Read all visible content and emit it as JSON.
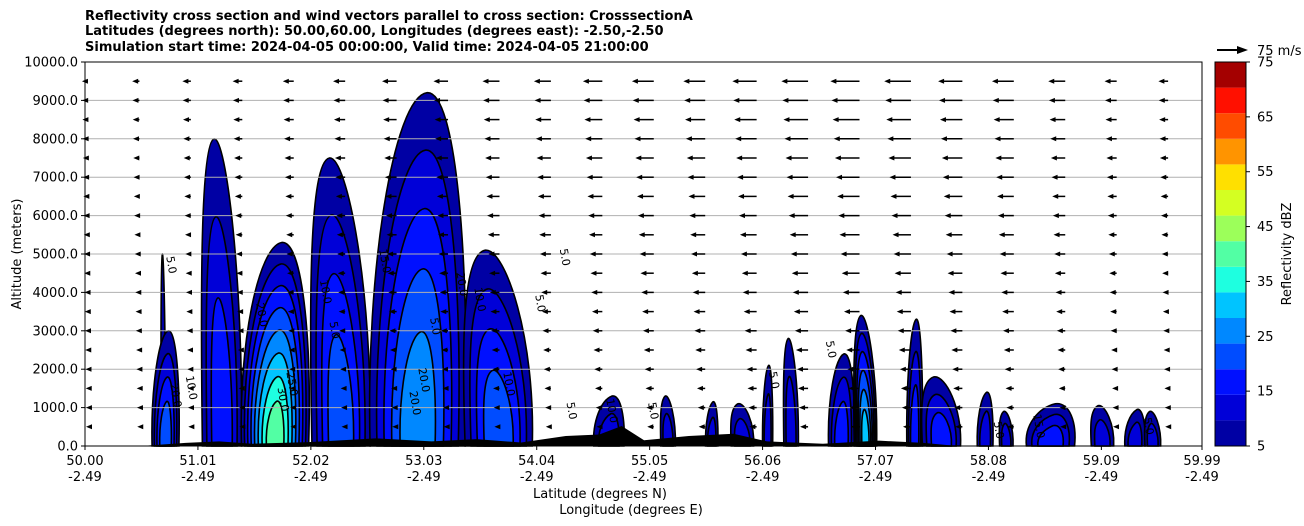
{
  "title_lines": [
    "Reflectivity cross section and wind vectors parallel to cross section: CrosssectionA",
    "Latitudes (degrees north): 50.00,60.00, Longitudes (degrees east): -2.50,-2.50",
    "Simulation start time: 2024-04-05 00:00:00, Valid time: 2024-04-05 21:00:00"
  ],
  "quiver_key_label": "75 m/s",
  "chart_data": {
    "type": "contourf",
    "ylabel": "Altitude (meters)",
    "xlabel_lines": [
      "Latitude (degrees N)",
      "Longitude (degrees E)"
    ],
    "xlim": [
      50.0,
      59.99
    ],
    "ylim": [
      0,
      10000
    ],
    "grid": "horizontal",
    "x_ticks": [
      {
        "value": 50.0,
        "lat": "50.00",
        "lon": "-2.49"
      },
      {
        "value": 51.01,
        "lat": "51.01",
        "lon": "-2.49"
      },
      {
        "value": 52.02,
        "lat": "52.02",
        "lon": "-2.49"
      },
      {
        "value": 53.03,
        "lat": "53.03",
        "lon": "-2.49"
      },
      {
        "value": 54.04,
        "lat": "54.04",
        "lon": "-2.49"
      },
      {
        "value": 55.05,
        "lat": "55.05",
        "lon": "-2.49"
      },
      {
        "value": 56.06,
        "lat": "56.06",
        "lon": "-2.49"
      },
      {
        "value": 57.07,
        "lat": "57.07",
        "lon": "-2.49"
      },
      {
        "value": 58.08,
        "lat": "58.08",
        "lon": "-2.49"
      },
      {
        "value": 59.09,
        "lat": "59.09",
        "lon": "-2.49"
      },
      {
        "value": 59.99,
        "lat": "59.99",
        "lon": "-2.49"
      }
    ],
    "y_ticks": [
      {
        "value": 0,
        "label": "0.0"
      },
      {
        "value": 1000,
        "label": "1000.0"
      },
      {
        "value": 2000,
        "label": "2000.0"
      },
      {
        "value": 3000,
        "label": "3000.0"
      },
      {
        "value": 4000,
        "label": "4000.0"
      },
      {
        "value": 5000,
        "label": "5000.0"
      },
      {
        "value": 6000,
        "label": "6000.0"
      },
      {
        "value": 7000,
        "label": "7000.0"
      },
      {
        "value": 8000,
        "label": "8000.0"
      },
      {
        "value": 9000,
        "label": "9000.0"
      },
      {
        "value": 10000,
        "label": "10000.0"
      }
    ],
    "colorbar": {
      "label": "Reflectivity dBZ",
      "levels": [
        5,
        10,
        15,
        20,
        25,
        30,
        35,
        40,
        45,
        50,
        55,
        60,
        65,
        70,
        75
      ],
      "colors": [
        "#0000a4",
        "#0000d8",
        "#0010ff",
        "#004cff",
        "#0088ff",
        "#00c4ff",
        "#1effe0",
        "#52ffa4",
        "#9cff5a",
        "#d4ff22",
        "#ffe000",
        "#ff9400",
        "#ff4c00",
        "#ff1000",
        "#a40000"
      ],
      "tick_labels": [
        "5",
        "15",
        "25",
        "35",
        "45",
        "55",
        "65",
        "75"
      ],
      "tick_values": [
        5,
        15,
        25,
        35,
        45,
        55,
        65,
        75
      ]
    },
    "cells": [
      {
        "x0": 50.68,
        "x1": 50.72,
        "top": 5000,
        "peak": 5
      },
      {
        "x0": 50.6,
        "x1": 50.84,
        "top": 3000,
        "peak": 20
      },
      {
        "x0": 51.05,
        "x1": 51.4,
        "top": 8000,
        "peak": 15
      },
      {
        "x0": 51.4,
        "x1": 52.0,
        "top": 5300,
        "peak": 40
      },
      {
        "x0": 52.03,
        "x1": 52.55,
        "top": 7500,
        "peak": 20
      },
      {
        "x0": 52.55,
        "x1": 53.4,
        "top": 9200,
        "peak": 25
      },
      {
        "x0": 53.4,
        "x1": 54.0,
        "top": 5100,
        "peak": 20
      },
      {
        "x0": 54.55,
        "x1": 54.82,
        "top": 1300,
        "peak": 10
      },
      {
        "x0": 55.15,
        "x1": 55.28,
        "top": 1300,
        "peak": 10
      },
      {
        "x0": 55.55,
        "x1": 55.66,
        "top": 1150,
        "peak": 10
      },
      {
        "x0": 55.78,
        "x1": 55.98,
        "top": 1100,
        "peak": 10
      },
      {
        "x0": 56.06,
        "x1": 56.15,
        "top": 2100,
        "peak": 10
      },
      {
        "x0": 56.25,
        "x1": 56.38,
        "top": 2800,
        "peak": 10
      },
      {
        "x0": 56.65,
        "x1": 56.88,
        "top": 2400,
        "peak": 15
      },
      {
        "x0": 56.88,
        "x1": 57.08,
        "top": 3400,
        "peak": 30
      },
      {
        "x0": 57.35,
        "x1": 57.49,
        "top": 3300,
        "peak": 15
      },
      {
        "x0": 57.49,
        "x1": 57.83,
        "top": 1800,
        "peak": 15
      },
      {
        "x0": 57.98,
        "x1": 58.12,
        "top": 1400,
        "peak": 10
      },
      {
        "x0": 58.18,
        "x1": 58.3,
        "top": 900,
        "peak": 10
      },
      {
        "x0": 58.42,
        "x1": 58.85,
        "top": 1100,
        "peak": 15
      },
      {
        "x0": 59.0,
        "x1": 59.2,
        "top": 1050,
        "peak": 10
      },
      {
        "x0": 59.3,
        "x1": 59.48,
        "top": 950,
        "peak": 10
      },
      {
        "x0": 59.48,
        "x1": 59.62,
        "top": 900,
        "peak": 10
      }
    ],
    "contour_labels": [
      {
        "text": "5.0",
        "x": 50.74,
        "y": 4700
      },
      {
        "text": "5.0",
        "x": 54.26,
        "y": 4900
      },
      {
        "text": "5.0",
        "x": 54.04,
        "y": 3700
      },
      {
        "text": "15.0",
        "x": 52.65,
        "y": 4800
      },
      {
        "text": "20.0",
        "x": 51.55,
        "y": 3400
      },
      {
        "text": "10.0",
        "x": 52.12,
        "y": 4000
      },
      {
        "text": "5.0",
        "x": 52.2,
        "y": 3000
      },
      {
        "text": "5.0",
        "x": 53.1,
        "y": 3100
      },
      {
        "text": "20.0",
        "x": 53.34,
        "y": 4200
      },
      {
        "text": "10.0",
        "x": 53.5,
        "y": 3800
      },
      {
        "text": "25.0",
        "x": 51.82,
        "y": 1600
      },
      {
        "text": "30.0",
        "x": 51.74,
        "y": 1200
      },
      {
        "text": "20.0",
        "x": 50.78,
        "y": 1300
      },
      {
        "text": "10.0",
        "x": 50.92,
        "y": 1500
      },
      {
        "text": "20.0",
        "x": 53.0,
        "y": 1700
      },
      {
        "text": "20.0",
        "x": 52.92,
        "y": 1100
      },
      {
        "text": "10.0",
        "x": 53.76,
        "y": 1600
      },
      {
        "text": "5.0",
        "x": 54.32,
        "y": 900
      },
      {
        "text": "10.0",
        "x": 54.68,
        "y": 900
      },
      {
        "text": "5.0",
        "x": 55.05,
        "y": 900
      },
      {
        "text": "5.0",
        "x": 56.13,
        "y": 1700
      },
      {
        "text": "5.0",
        "x": 56.64,
        "y": 2500
      },
      {
        "text": "5.0",
        "x": 58.14,
        "y": 400
      },
      {
        "text": "15.0",
        "x": 58.5,
        "y": 500
      },
      {
        "text": "5.0",
        "x": 59.48,
        "y": 500
      }
    ],
    "wind": {
      "columns_x": [
        50.0,
        50.46,
        50.92,
        51.38,
        51.84,
        52.3,
        52.76,
        53.22,
        53.68,
        54.14,
        54.6,
        55.06,
        55.52,
        55.98,
        56.44,
        56.9,
        57.36,
        57.82,
        58.28,
        58.74,
        59.2,
        59.66
      ],
      "levels_m": [
        500,
        1000,
        1500,
        2000,
        2500,
        3000,
        3500,
        4000,
        4500,
        5000,
        5500,
        6000,
        6500,
        7000,
        7500,
        8000,
        8500,
        9000,
        9500
      ],
      "u_top_ms": [
        -5,
        -6,
        -7,
        -8,
        -9,
        -10,
        -12,
        -12,
        -14,
        -14,
        -16,
        -18,
        -18,
        -20,
        -22,
        -24,
        -22,
        -20,
        -18,
        -14,
        -10,
        -8
      ],
      "key_speed_ms": 75
    },
    "terrain_profile": [
      {
        "x": 50.5,
        "h": 0
      },
      {
        "x": 50.9,
        "h": 80
      },
      {
        "x": 51.2,
        "h": 120
      },
      {
        "x": 51.5,
        "h": 60
      },
      {
        "x": 52.0,
        "h": 100
      },
      {
        "x": 52.6,
        "h": 200
      },
      {
        "x": 53.1,
        "h": 120
      },
      {
        "x": 53.5,
        "h": 180
      },
      {
        "x": 53.9,
        "h": 90
      },
      {
        "x": 54.3,
        "h": 260
      },
      {
        "x": 54.6,
        "h": 300
      },
      {
        "x": 54.8,
        "h": 520
      },
      {
        "x": 55.0,
        "h": 150
      },
      {
        "x": 55.4,
        "h": 260
      },
      {
        "x": 55.8,
        "h": 320
      },
      {
        "x": 56.1,
        "h": 120
      },
      {
        "x": 56.6,
        "h": 60
      },
      {
        "x": 57.1,
        "h": 140
      },
      {
        "x": 57.5,
        "h": 80
      },
      {
        "x": 57.8,
        "h": 0
      }
    ]
  }
}
